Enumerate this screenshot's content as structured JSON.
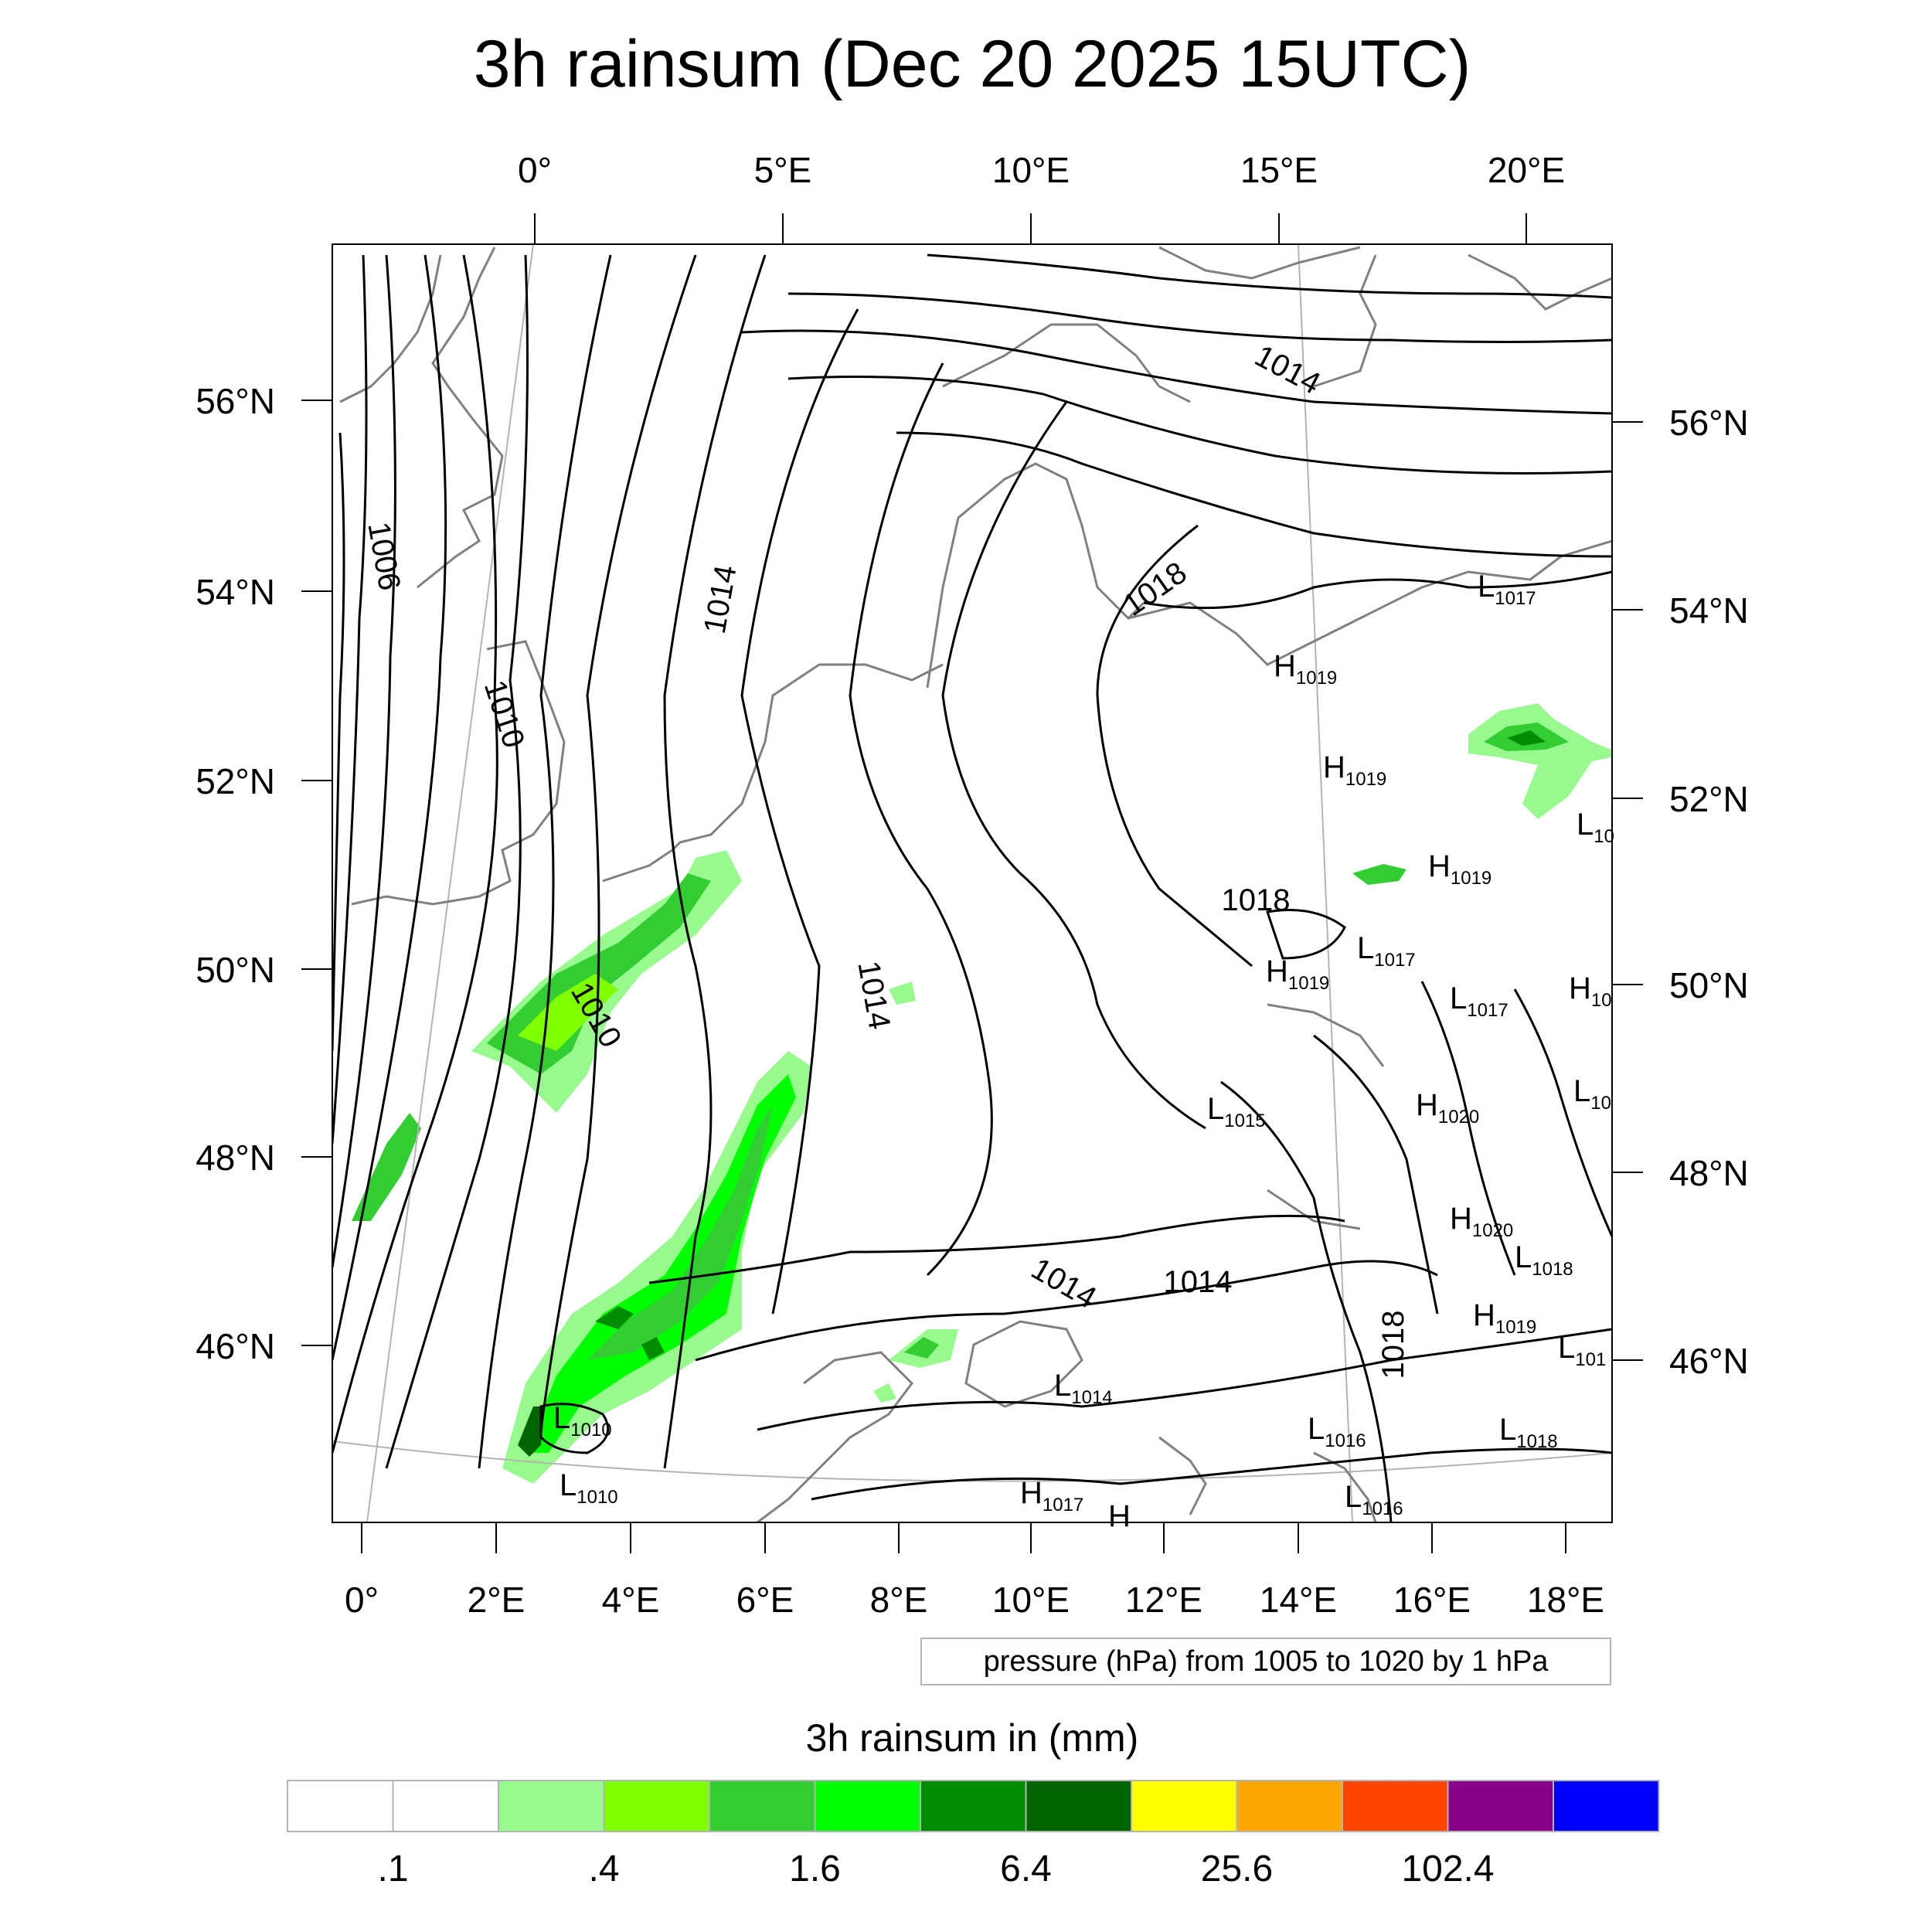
{
  "title": "3h rainsum (Dec 20 2025 15UTC)",
  "map": {
    "top_lon_labels": [
      "0°",
      "5°E",
      "10°E",
      "15°E",
      "20°E"
    ],
    "bottom_lon_labels": [
      "0°",
      "2°E",
      "4°E",
      "6°E",
      "8°E",
      "10°E",
      "12°E",
      "14°E",
      "16°E",
      "18°E"
    ],
    "left_lat_labels": [
      "56°N",
      "54°N",
      "52°N",
      "50°N",
      "48°N",
      "46°N"
    ],
    "right_lat_labels": [
      "56°N",
      "54°N",
      "52°N",
      "50°N",
      "48°N",
      "46°N"
    ],
    "isobar_labels": [
      "1006",
      "1010",
      "1014",
      "1014",
      "1018",
      "1010",
      "1014",
      "1018",
      "1014",
      "1014",
      "1018"
    ],
    "pressure_centers": [
      {
        "type": "L",
        "value": "1017"
      },
      {
        "type": "H",
        "value": "1019"
      },
      {
        "type": "H",
        "value": "1019"
      },
      {
        "type": "L",
        "value": "10"
      },
      {
        "type": "H",
        "value": "1019"
      },
      {
        "type": "L",
        "value": "1017"
      },
      {
        "type": "H",
        "value": "1019"
      },
      {
        "type": "L",
        "value": "1017"
      },
      {
        "type": "H",
        "value": "10"
      },
      {
        "type": "L",
        "value": "10"
      },
      {
        "type": "L",
        "value": "1015"
      },
      {
        "type": "H",
        "value": "1020"
      },
      {
        "type": "H",
        "value": "1020"
      },
      {
        "type": "L",
        "value": "1018"
      },
      {
        "type": "H",
        "value": "1019"
      },
      {
        "type": "L",
        "value": "101"
      },
      {
        "type": "L",
        "value": "1014"
      },
      {
        "type": "L",
        "value": "1016"
      },
      {
        "type": "L",
        "value": "1018"
      },
      {
        "type": "L",
        "value": "1010"
      },
      {
        "type": "L",
        "value": "1010"
      },
      {
        "type": "H",
        "value": "1017"
      },
      {
        "type": "H",
        "value": ""
      },
      {
        "type": "L",
        "value": "1016"
      }
    ],
    "contour_note": "pressure (hPa) from 1005 to 1020 by 1 hPa",
    "colors": {
      "coastline": "#808080",
      "isobar": "#000000",
      "gridline": "#b4b4b4"
    }
  },
  "colorbar": {
    "title": "3h rainsum in (mm)",
    "colors": [
      "#ffffff",
      "#ffffff",
      "#98f98e",
      "#7ffe00",
      "#32cd32",
      "#00ff00",
      "#008c00",
      "#006400",
      "#ffff00",
      "#ffa500",
      "#ff4500",
      "#8b008b",
      "#0000ff"
    ],
    "labels": [
      ".1",
      ".4",
      "1.6",
      "6.4",
      "25.6",
      "102.4"
    ]
  }
}
